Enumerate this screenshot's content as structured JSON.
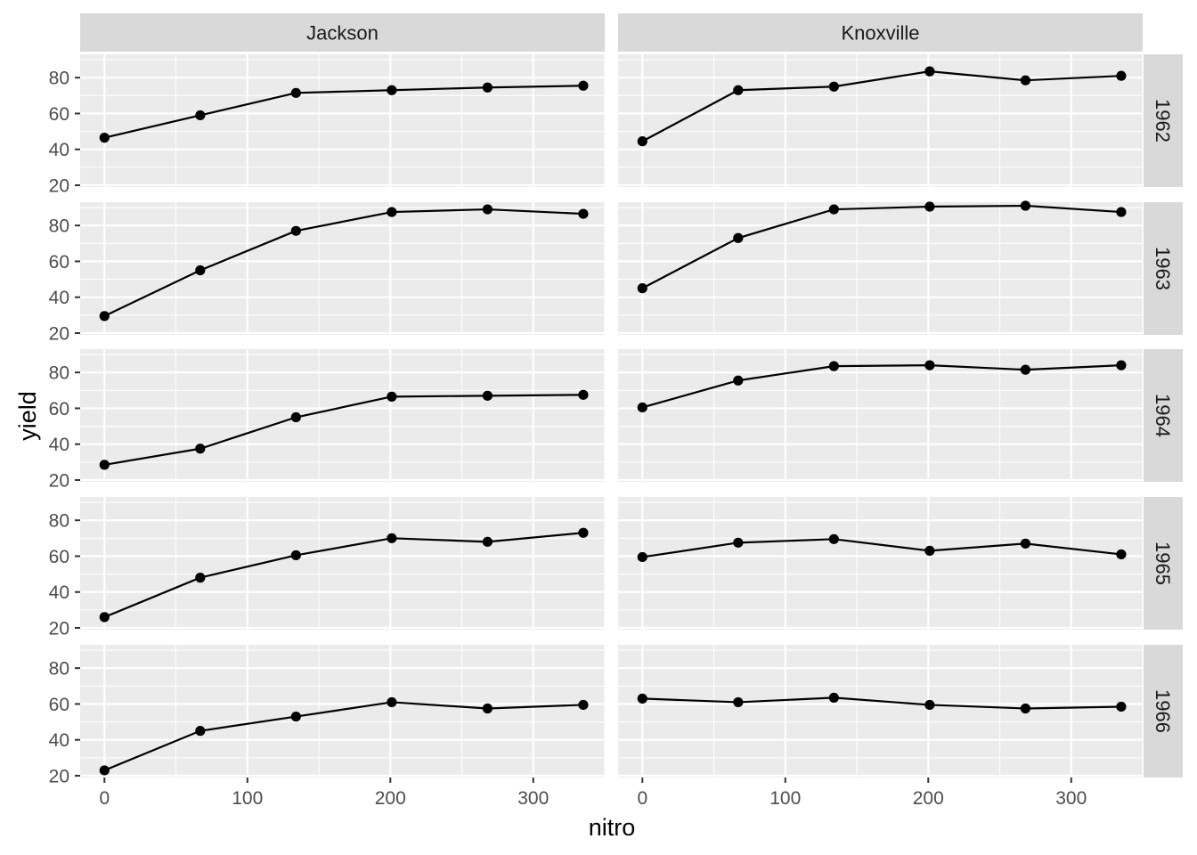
{
  "chart_data": {
    "type": "line",
    "facet_cols": [
      "Jackson",
      "Knoxville"
    ],
    "facet_rows": [
      "1962",
      "1963",
      "1964",
      "1965",
      "1966"
    ],
    "xlabel": "nitro",
    "ylabel": "yield",
    "xlim": [
      -17,
      350
    ],
    "ylim": [
      19,
      93
    ],
    "x_ticks": [
      0,
      100,
      200,
      300
    ],
    "y_ticks": [
      20,
      40,
      60,
      80
    ],
    "x": [
      0,
      67,
      134,
      201,
      268,
      335
    ],
    "series": [
      {
        "col": "Jackson",
        "row": "1962",
        "values": [
          46.5,
          59,
          71.5,
          73,
          74.5,
          75.5
        ]
      },
      {
        "col": "Knoxville",
        "row": "1962",
        "values": [
          44.5,
          73,
          75,
          83.5,
          78.5,
          81
        ]
      },
      {
        "col": "Jackson",
        "row": "1963",
        "values": [
          29.5,
          55,
          77,
          87.5,
          89,
          86.5
        ]
      },
      {
        "col": "Knoxville",
        "row": "1963",
        "values": [
          45,
          73,
          89,
          90.5,
          91,
          87.5
        ]
      },
      {
        "col": "Jackson",
        "row": "1964",
        "values": [
          28.5,
          37.5,
          55,
          66.5,
          67,
          67.5
        ]
      },
      {
        "col": "Knoxville",
        "row": "1964",
        "values": [
          60.5,
          75.5,
          83.5,
          84,
          81.5,
          84
        ]
      },
      {
        "col": "Jackson",
        "row": "1965",
        "values": [
          26,
          48,
          60.5,
          70,
          68,
          73
        ]
      },
      {
        "col": "Knoxville",
        "row": "1965",
        "values": [
          59.5,
          67.5,
          69.5,
          63,
          67,
          61
        ]
      },
      {
        "col": "Jackson",
        "row": "1966",
        "values": [
          23,
          45,
          53,
          61,
          57.5,
          59.5
        ]
      },
      {
        "col": "Knoxville",
        "row": "1966",
        "values": [
          63,
          61,
          63.5,
          59.5,
          57.5,
          58.5
        ]
      }
    ],
    "grid": true,
    "legend": "none"
  }
}
